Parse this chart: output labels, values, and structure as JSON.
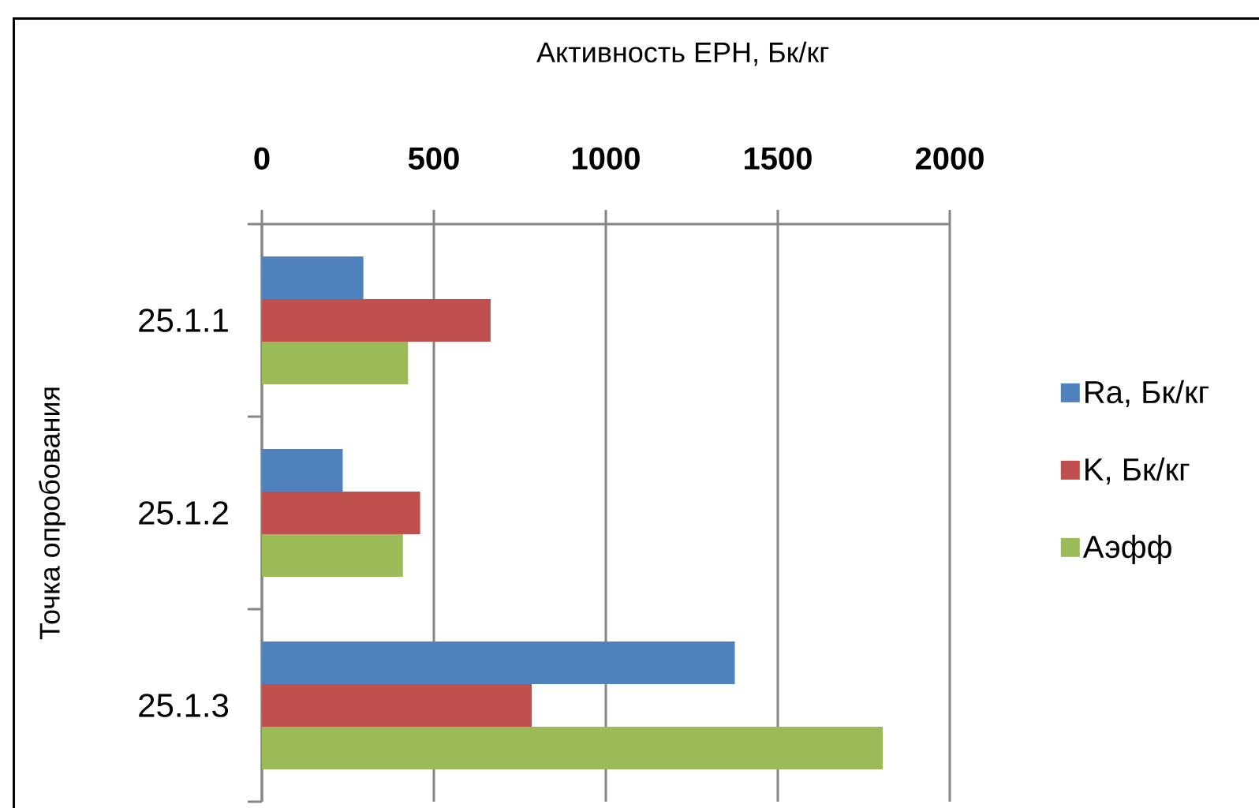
{
  "chart_data": {
    "type": "bar",
    "orientation": "horizontal",
    "xlabel": "Активность ЕРН, Бк/кг",
    "ylabel": "Точка опробования",
    "categories": [
      "25.1.1",
      "25.1.2",
      "25.1.3"
    ],
    "series": [
      {
        "name": "Ra, Бк/кг",
        "color": "#4f81bd",
        "values": [
          295,
          235,
          1375
        ]
      },
      {
        "name": "K, Бк/кг",
        "color": "#c0504d",
        "values": [
          665,
          460,
          785
        ]
      },
      {
        "name": "Аэфф",
        "color": "#9bbb59",
        "values": [
          425,
          410,
          1805
        ]
      }
    ],
    "xlim": [
      0,
      2000
    ],
    "xticks": [
      0,
      500,
      1000,
      1500,
      2000
    ],
    "grid": "x",
    "legend": "right"
  }
}
